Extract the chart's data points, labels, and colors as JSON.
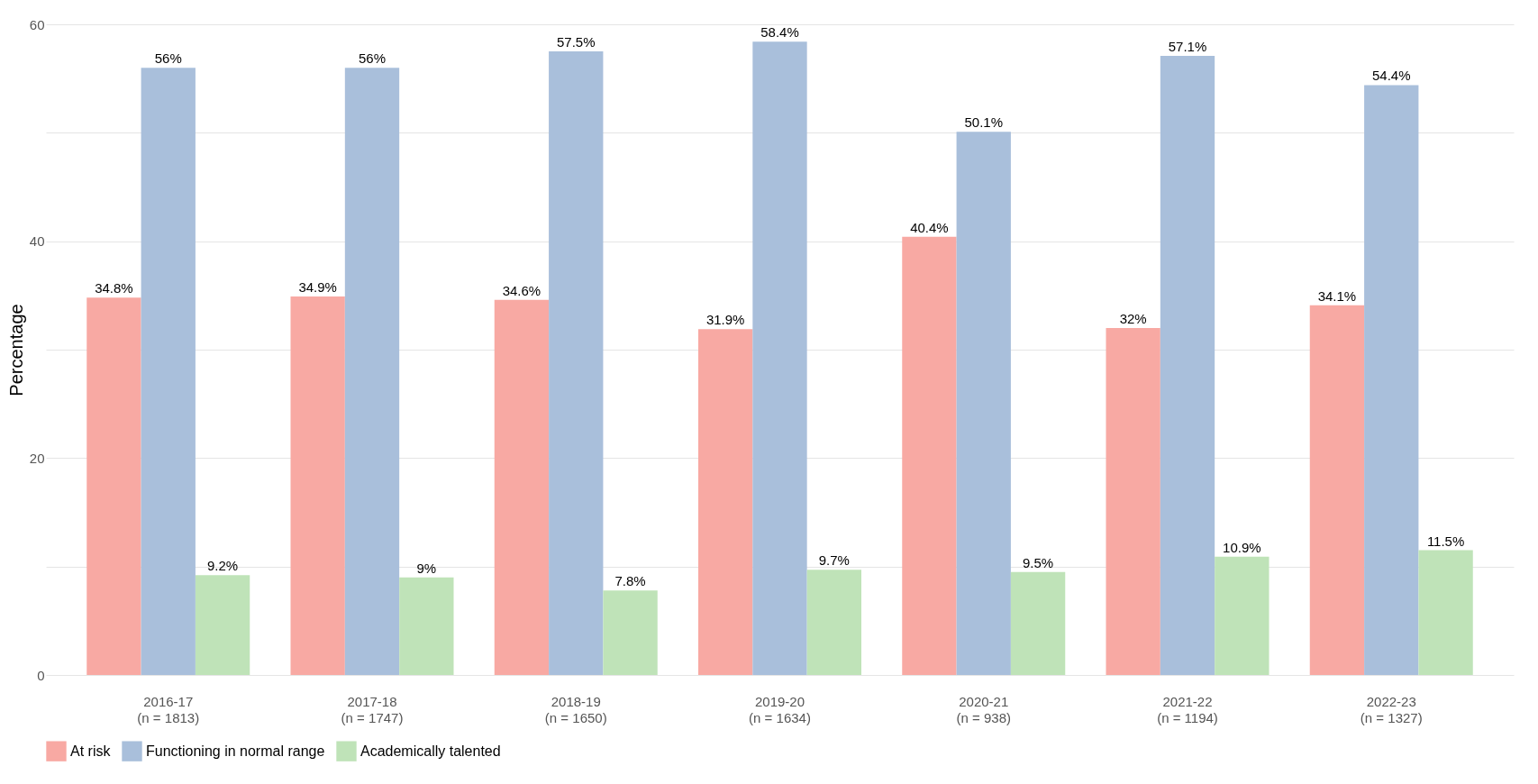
{
  "chart_data": {
    "type": "bar",
    "ylabel": "Percentage",
    "categories": [
      "2016-17\n(n = 1813)",
      "2017-18\n(n = 1747)",
      "2018-19\n(n = 1650)",
      "2019-20\n(n = 1634)",
      "2020-21\n(n = 938)",
      "2021-22\n(n = 1194)",
      "2022-23\n(n = 1327)"
    ],
    "series": [
      {
        "name": "At risk",
        "color": "#f8a9a3",
        "values": [
          34.8,
          34.9,
          34.6,
          31.9,
          40.4,
          32,
          34.1
        ],
        "value_labels": [
          "34.8%",
          "34.9%",
          "34.6%",
          "31.9%",
          "40.4%",
          "32%",
          "34.1%"
        ]
      },
      {
        "name": "Functioning in normal range",
        "color": "#a9bfdb",
        "values": [
          56,
          56,
          57.5,
          58.4,
          50.1,
          57.1,
          54.4
        ],
        "value_labels": [
          "56%",
          "56%",
          "57.5%",
          "58.4%",
          "50.1%",
          "57.1%",
          "54.4%"
        ]
      },
      {
        "name": "Academically talented",
        "color": "#bfe3b8",
        "values": [
          9.2,
          9,
          7.8,
          9.7,
          9.5,
          10.9,
          11.5
        ],
        "value_labels": [
          "9.2%",
          "9%",
          "7.8%",
          "9.7%",
          "9.5%",
          "10.9%",
          "11.5%"
        ]
      }
    ],
    "ylim": [
      0,
      60
    ],
    "yticks": [
      0,
      {
        "value": 10,
        "label": null
      },
      20,
      {
        "value": 30,
        "label": null
      },
      40,
      {
        "value": 50,
        "label": null
      },
      60
    ],
    "grid": "y",
    "legend": "bottom"
  }
}
